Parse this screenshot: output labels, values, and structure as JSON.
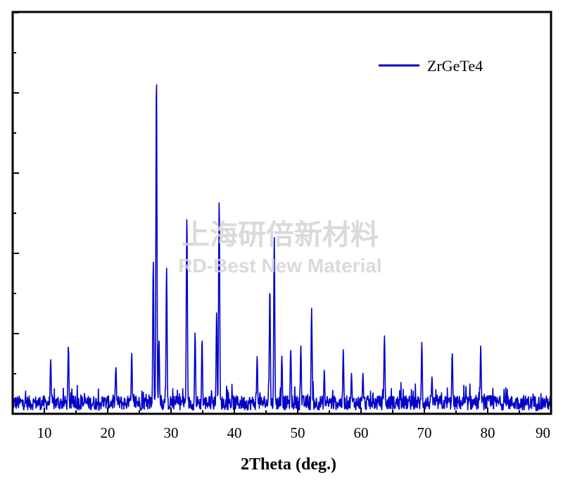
{
  "chart_data": {
    "type": "line",
    "title": "",
    "xlabel": "2Theta (deg.)",
    "ylabel": "",
    "xlim": [
      5,
      90
    ],
    "ylim": [
      0,
      1.0
    ],
    "x_ticks": [
      10,
      20,
      30,
      40,
      50,
      60,
      70,
      80,
      90
    ],
    "y_tick_labels_shown": false,
    "legend_position": "top-right",
    "series": [
      {
        "name": "ZrGeTe4",
        "color": "#0000c8",
        "noise_level": 0.04,
        "peaks": [
          {
            "x": 11.0,
            "y": 0.16
          },
          {
            "x": 13.8,
            "y": 0.2
          },
          {
            "x": 21.3,
            "y": 0.14
          },
          {
            "x": 23.8,
            "y": 0.18
          },
          {
            "x": 27.2,
            "y": 0.45
          },
          {
            "x": 27.7,
            "y": 1.0
          },
          {
            "x": 28.1,
            "y": 0.22
          },
          {
            "x": 29.3,
            "y": 0.43
          },
          {
            "x": 32.5,
            "y": 0.58
          },
          {
            "x": 33.8,
            "y": 0.24
          },
          {
            "x": 34.9,
            "y": 0.22
          },
          {
            "x": 37.2,
            "y": 0.3
          },
          {
            "x": 37.6,
            "y": 0.63
          },
          {
            "x": 43.6,
            "y": 0.17
          },
          {
            "x": 45.6,
            "y": 0.37
          },
          {
            "x": 46.3,
            "y": 0.52
          },
          {
            "x": 47.5,
            "y": 0.17
          },
          {
            "x": 48.9,
            "y": 0.19
          },
          {
            "x": 50.5,
            "y": 0.2
          },
          {
            "x": 52.2,
            "y": 0.31
          },
          {
            "x": 54.2,
            "y": 0.13
          },
          {
            "x": 57.2,
            "y": 0.19
          },
          {
            "x": 58.5,
            "y": 0.12
          },
          {
            "x": 60.3,
            "y": 0.12
          },
          {
            "x": 63.7,
            "y": 0.23
          },
          {
            "x": 69.6,
            "y": 0.21
          },
          {
            "x": 71.2,
            "y": 0.11
          },
          {
            "x": 74.4,
            "y": 0.18
          },
          {
            "x": 78.9,
            "y": 0.2
          }
        ]
      }
    ]
  },
  "watermark": {
    "line1": "上海研倍新材料",
    "line2": "RD-Best New Material"
  }
}
